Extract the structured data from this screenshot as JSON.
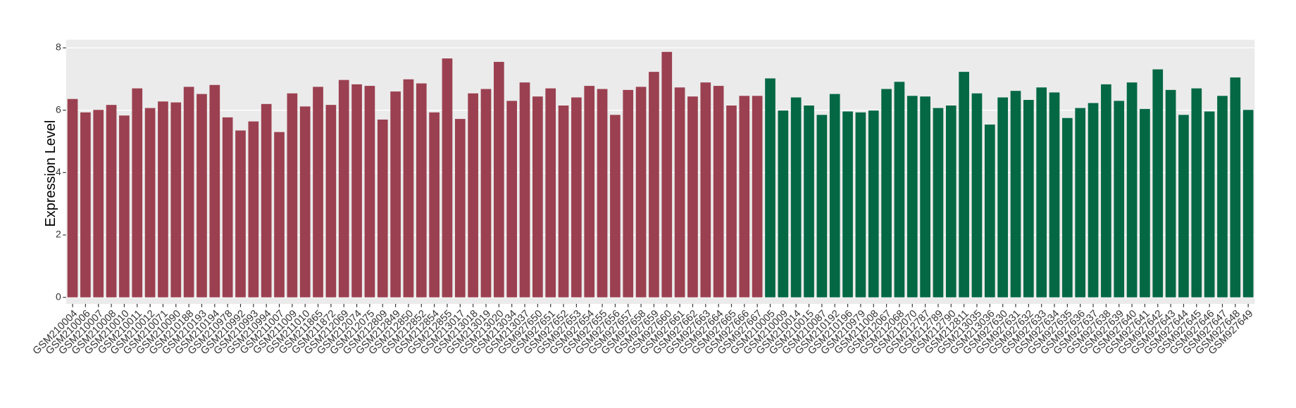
{
  "chart_data": {
    "type": "bar",
    "y_label": "Expression Level",
    "categories": [
      "GSM210004",
      "GSM210006",
      "GSM210007",
      "GSM210008",
      "GSM210010",
      "GSM210011",
      "GSM210012",
      "GSM210071",
      "GSM210090",
      "GSM210188",
      "GSM210193",
      "GSM210194",
      "GSM210978",
      "GSM210992",
      "GSM210993",
      "GSM210994",
      "GSM211007",
      "GSM211009",
      "GSM211010",
      "GSM211865",
      "GSM211872",
      "GSM212069",
      "GSM212074",
      "GSM212075",
      "GSM212809",
      "GSM212849",
      "GSM212850",
      "GSM212852",
      "GSM212854",
      "GSM212855",
      "GSM213017",
      "GSM213018",
      "GSM213019",
      "GSM213020",
      "GSM213034",
      "GSM213037",
      "GSM927650",
      "GSM927651",
      "GSM927652",
      "GSM927653",
      "GSM927654",
      "GSM927655",
      "GSM927656",
      "GSM927657",
      "GSM927658",
      "GSM927659",
      "GSM927660",
      "GSM927661",
      "GSM927662",
      "GSM927663",
      "GSM927664",
      "GSM927665",
      "GSM927666",
      "GSM927667",
      "GSM210005",
      "GSM210009",
      "GSM210014",
      "GSM210015",
      "GSM210087",
      "GSM210192",
      "GSM210196",
      "GSM210979",
      "GSM211008",
      "GSM212067",
      "GSM212068",
      "GSM212070",
      "GSM212787",
      "GSM212789",
      "GSM212790",
      "GSM212811",
      "GSM213035",
      "GSM213036",
      "GSM927630",
      "GSM927631",
      "GSM927632",
      "GSM927633",
      "GSM927634",
      "GSM927635",
      "GSM927636",
      "GSM927637",
      "GSM927638",
      "GSM927639",
      "GSM927640",
      "GSM927641",
      "GSM927642",
      "GSM927643",
      "GSM927644",
      "GSM927645",
      "GSM927646",
      "GSM927647",
      "GSM927648",
      "GSM927649"
    ],
    "values": [
      6.36,
      5.93,
      6.01,
      6.17,
      5.83,
      6.7,
      6.07,
      6.28,
      6.25,
      6.75,
      6.52,
      6.81,
      5.77,
      5.35,
      5.64,
      6.2,
      5.3,
      6.54,
      6.12,
      6.75,
      6.17,
      6.97,
      6.83,
      6.78,
      5.7,
      6.6,
      6.99,
      6.86,
      5.93,
      7.66,
      5.72,
      6.54,
      6.68,
      7.55,
      6.3,
      6.89,
      6.44,
      6.7,
      6.15,
      6.41,
      6.78,
      6.68,
      5.85,
      6.65,
      6.75,
      7.23,
      7.87,
      6.73,
      6.44,
      6.89,
      6.78,
      6.15,
      6.46,
      6.46,
      7.02,
      5.99,
      6.41,
      6.15,
      5.85,
      6.52,
      5.96,
      5.93,
      5.99,
      6.68,
      6.91,
      6.46,
      6.44,
      6.07,
      6.15,
      7.23,
      6.54,
      5.54,
      6.41,
      6.62,
      6.33,
      6.73,
      6.57,
      5.75,
      6.07,
      6.23,
      6.83,
      6.3,
      6.89,
      6.04,
      7.31,
      6.65,
      5.85,
      6.7,
      5.96,
      6.46,
      7.05,
      6.01
    ],
    "colors": [
      "#9b4050",
      "#9b4050",
      "#9b4050",
      "#9b4050",
      "#9b4050",
      "#9b4050",
      "#9b4050",
      "#9b4050",
      "#9b4050",
      "#9b4050",
      "#9b4050",
      "#9b4050",
      "#9b4050",
      "#9b4050",
      "#9b4050",
      "#9b4050",
      "#9b4050",
      "#9b4050",
      "#9b4050",
      "#9b4050",
      "#9b4050",
      "#9b4050",
      "#9b4050",
      "#9b4050",
      "#9b4050",
      "#9b4050",
      "#9b4050",
      "#9b4050",
      "#9b4050",
      "#9b4050",
      "#9b4050",
      "#9b4050",
      "#9b4050",
      "#9b4050",
      "#9b4050",
      "#9b4050",
      "#9b4050",
      "#9b4050",
      "#9b4050",
      "#9b4050",
      "#9b4050",
      "#9b4050",
      "#9b4050",
      "#9b4050",
      "#9b4050",
      "#9b4050",
      "#9b4050",
      "#9b4050",
      "#9b4050",
      "#9b4050",
      "#9b4050",
      "#9b4050",
      "#9b4050",
      "#9b4050",
      "#046845",
      "#046845",
      "#046845",
      "#046845",
      "#046845",
      "#046845",
      "#046845",
      "#046845",
      "#046845",
      "#046845",
      "#046845",
      "#046845",
      "#046845",
      "#046845",
      "#046845",
      "#046845",
      "#046845",
      "#046845",
      "#046845",
      "#046845",
      "#046845",
      "#046845",
      "#046845",
      "#046845",
      "#046845",
      "#046845",
      "#046845",
      "#046845",
      "#046845",
      "#046845",
      "#046845",
      "#046845",
      "#046845",
      "#046845",
      "#046845",
      "#046845",
      "#046845",
      "#046845"
    ],
    "ylim": [
      -0.21,
      8.26
    ],
    "yticks": [
      0,
      2,
      4,
      6,
      8
    ],
    "grid": true
  }
}
